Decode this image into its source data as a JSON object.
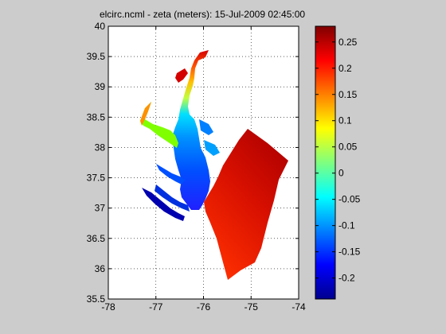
{
  "figure": {
    "title": "elcirc.ncml - zeta (meters): 15-Jul-2009 02:45:00"
  },
  "map": {
    "x_ticks": [
      "-78",
      "-77",
      "-76",
      "-75",
      "-74"
    ],
    "y_ticks": [
      "35.5",
      "36",
      "36.5",
      "37",
      "37.5",
      "38",
      "38.5",
      "39",
      "39.5",
      "40"
    ],
    "x_range": [
      -78,
      -74
    ],
    "y_range": [
      35.5,
      40
    ],
    "grid": true,
    "grid_style": "dotted"
  },
  "colorbar": {
    "colormap": "jet",
    "range": [
      -0.24,
      0.28
    ],
    "ticks": [
      "-0.2",
      "-0.15",
      "-0.1",
      "-0.05",
      "0",
      "0.05",
      "0.1",
      "0.15",
      "0.2",
      "0.25"
    ]
  },
  "colors": {
    "background": "#cccccc",
    "axes": "#ffffff"
  }
}
